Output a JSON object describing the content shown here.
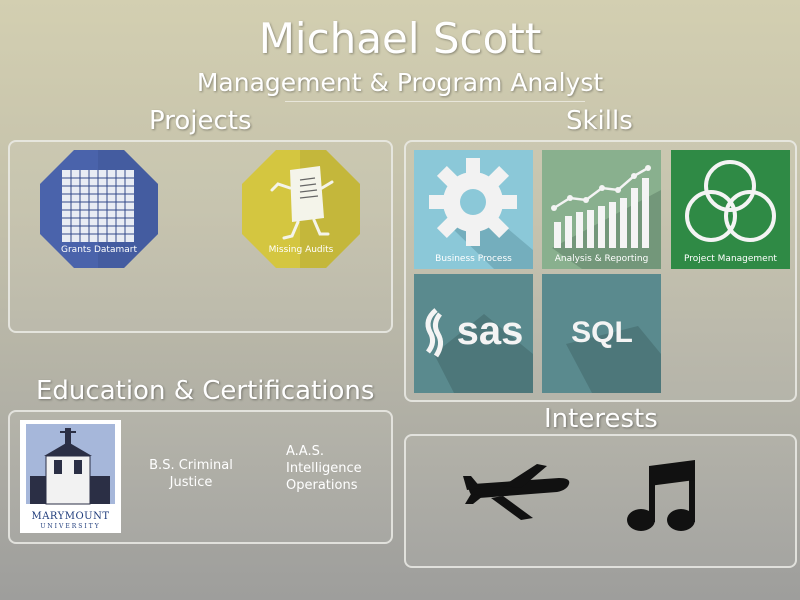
{
  "header": {
    "name": "Michael Scott",
    "role": "Management & Program Analyst"
  },
  "sections": {
    "projects": "Projects",
    "skills": "Skills",
    "education": "Education & Certifications",
    "interests": "Interests"
  },
  "projects": [
    {
      "label": "Grants Datamart",
      "color": "#4a63ab",
      "icon": "spreadsheet-icon"
    },
    {
      "label": "Missing Audits",
      "color": "#d4c640",
      "icon": "running-document-icon"
    }
  ],
  "skills": [
    {
      "label": "Business Process",
      "color": "#8bc8d8",
      "icon": "gear-icon"
    },
    {
      "label": "Analysis & Reporting",
      "color": "#89b08e",
      "icon": "bar-chart-icon"
    },
    {
      "label": "Project Management",
      "color": "#2f8a45",
      "icon": "venn-diagram-icon"
    },
    {
      "label": "sas",
      "color": "#5a8a8e",
      "icon": "sas-logo-icon"
    },
    {
      "label": "SQL",
      "color": "#5a8a8e",
      "icon": "sql-text-icon"
    }
  ],
  "education": {
    "logo_line1": "MARYMOUNT",
    "logo_line2": "UNIVERSITY",
    "degree1": [
      "B.S. Criminal",
      "Justice"
    ],
    "degree2": [
      "A.A.S.",
      "Intelligence",
      "Operations"
    ]
  },
  "interests": [
    {
      "icon": "airplane-icon"
    },
    {
      "icon": "music-note-icon"
    }
  ]
}
